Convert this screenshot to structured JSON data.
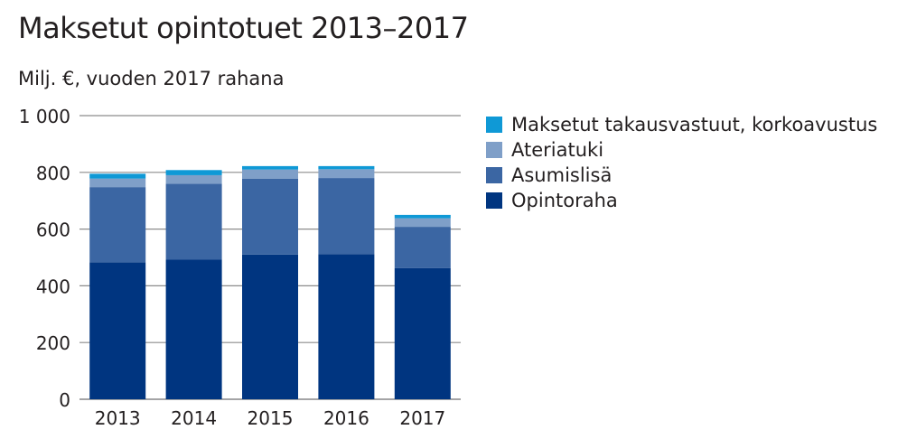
{
  "chart_data": {
    "type": "bar",
    "stacked": true,
    "title": "Maksetut opintotuet 2013–2017",
    "subtitle": "Milj. €, vuoden 2017 rahana",
    "categories": [
      "2013",
      "2014",
      "2015",
      "2016",
      "2017"
    ],
    "ylim": [
      0,
      1000
    ],
    "yticks": [
      0,
      200,
      400,
      600,
      800,
      1000
    ],
    "ytick_labels": [
      "0",
      "200",
      "400",
      "600",
      "800",
      "1 000"
    ],
    "grid": true,
    "legend_position": "right",
    "series": [
      {
        "name": "Opintoraha",
        "color": "#003580",
        "values": [
          483,
          492,
          510,
          512,
          462
        ]
      },
      {
        "name": "Asumislisä",
        "color": "#3b66a3",
        "values": [
          265,
          268,
          268,
          268,
          146
        ]
      },
      {
        "name": "Ateriatuki",
        "color": "#7f9fc8",
        "values": [
          30,
          30,
          32,
          31,
          30
        ]
      },
      {
        "name": "Maksetut takausvastuut, korkoavustus",
        "color": "#0f99d6",
        "values": [
          17,
          18,
          12,
          11,
          12
        ]
      }
    ]
  }
}
